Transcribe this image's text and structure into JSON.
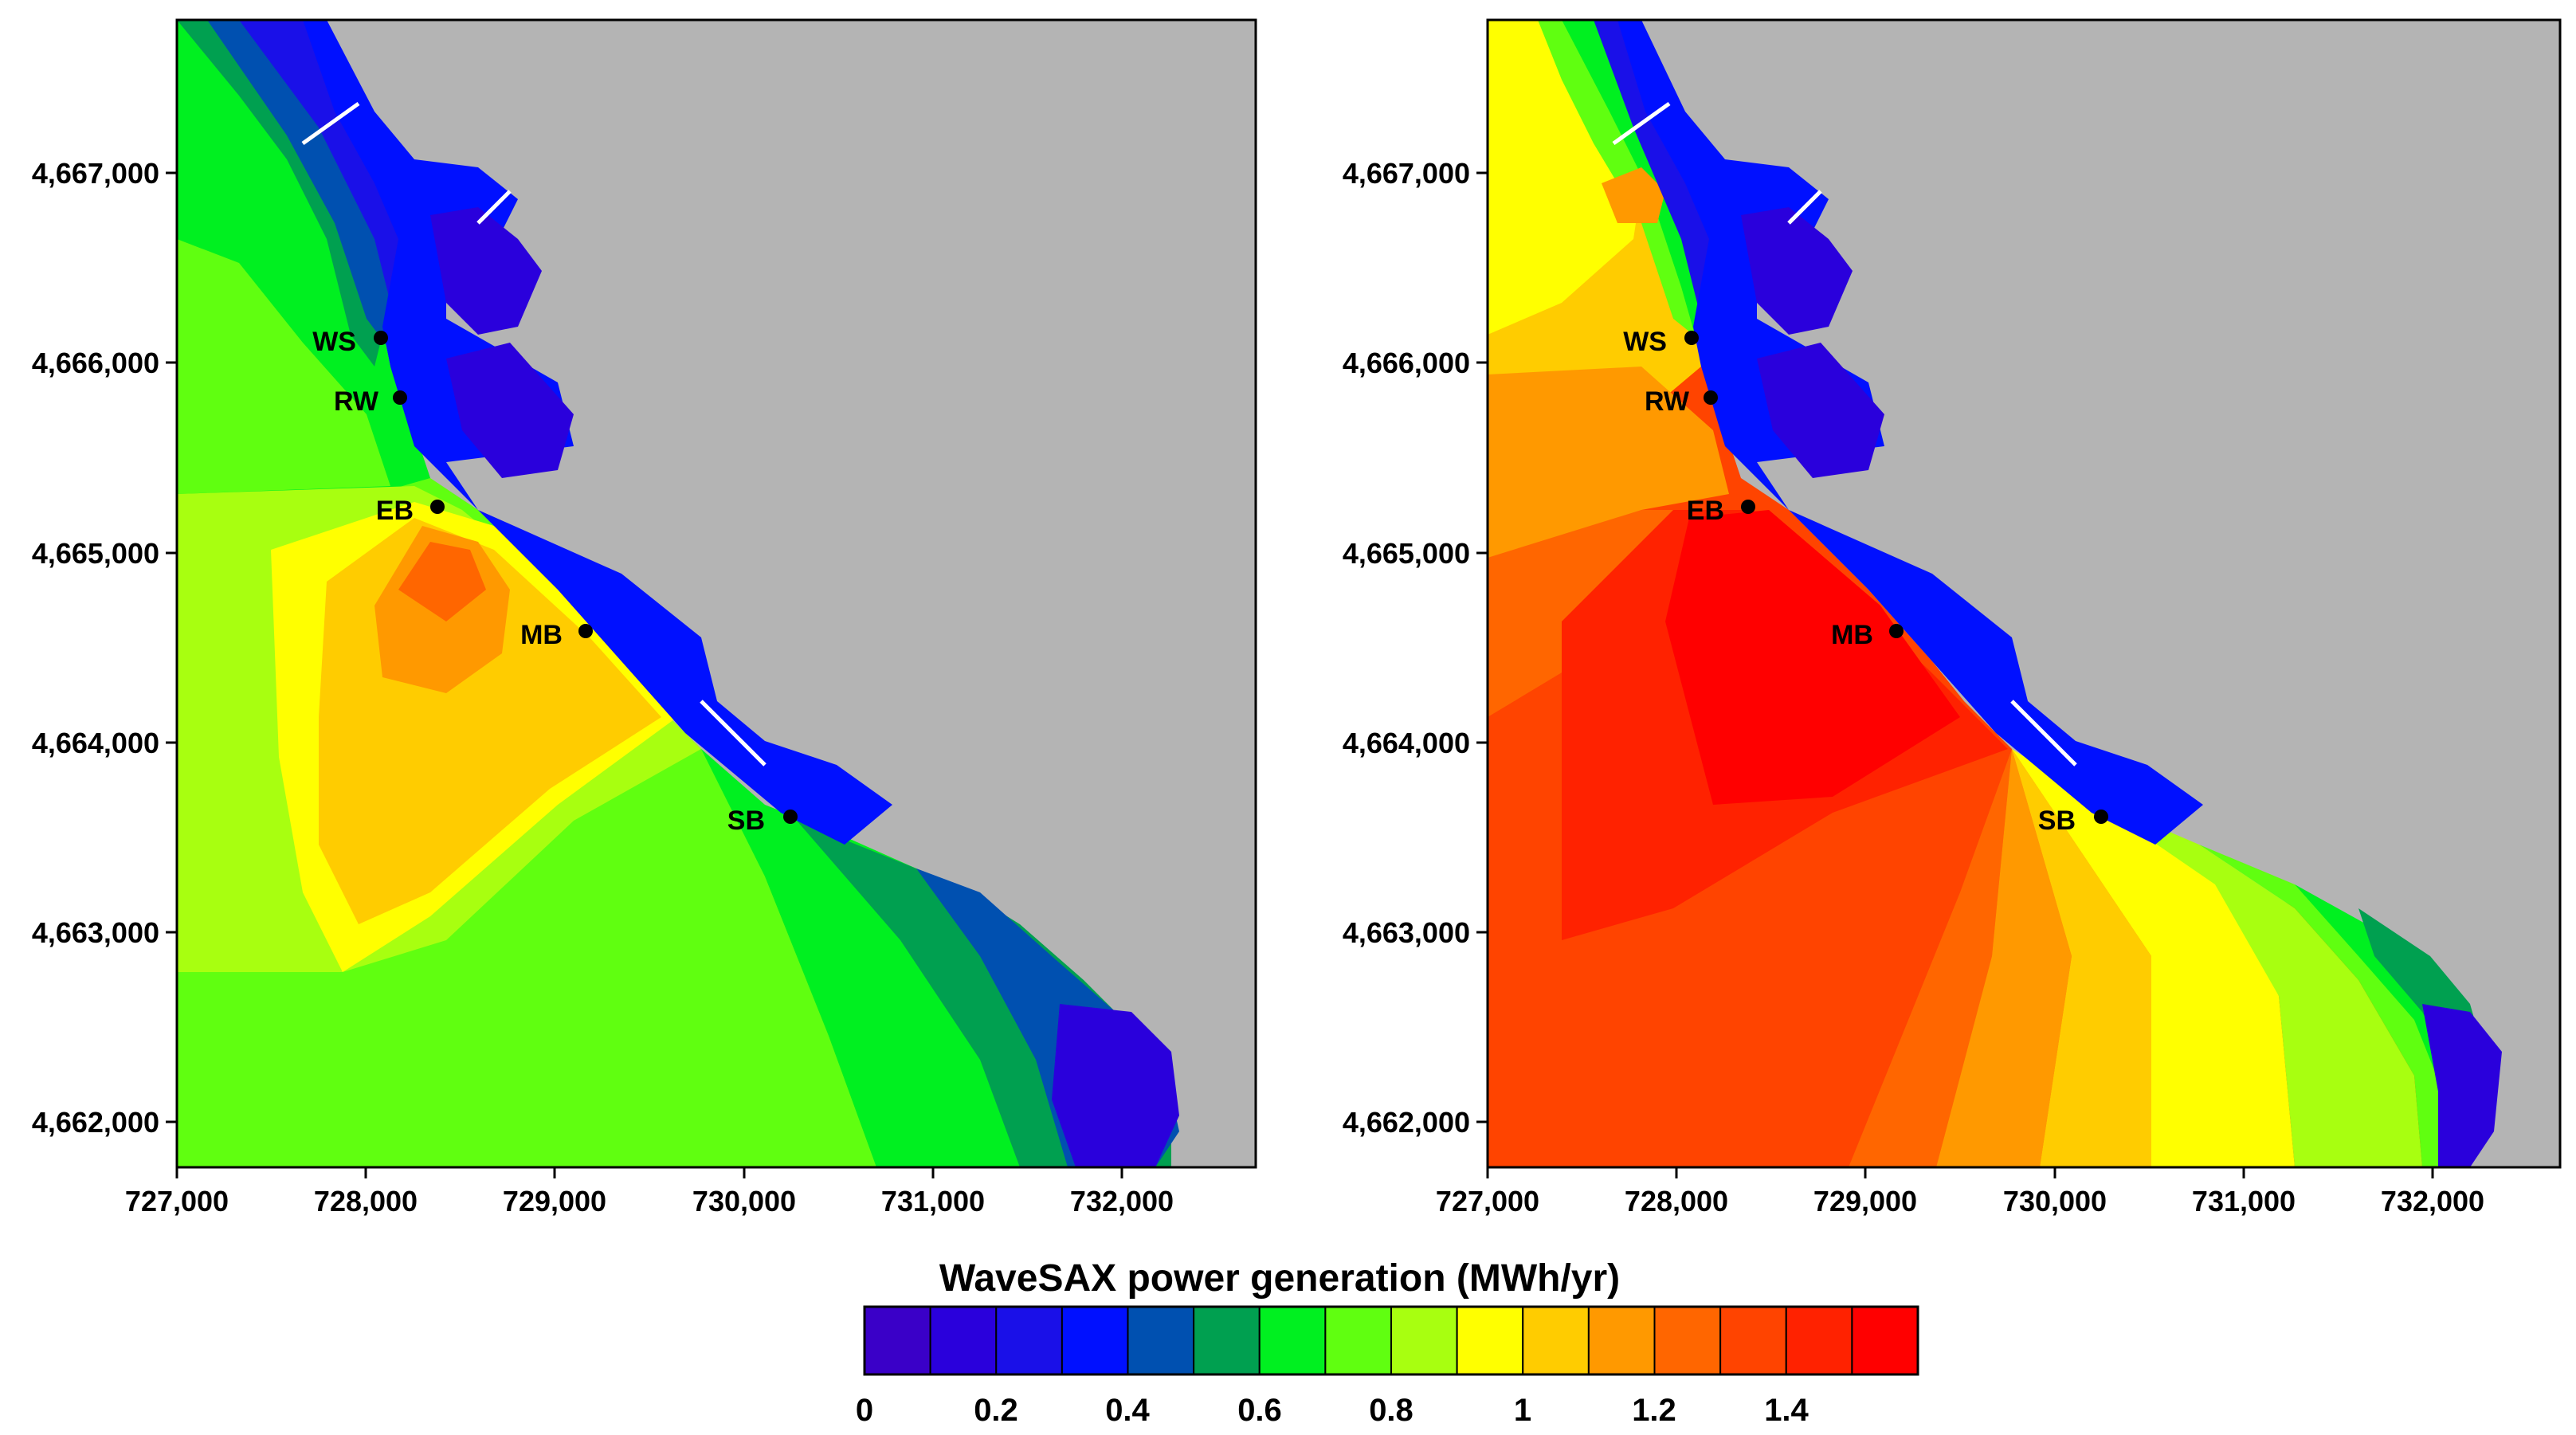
{
  "left_map": {
    "y_ticks": [
      "4,667,000",
      "4,666,000",
      "4,665,000",
      "4,664,000",
      "4,663,000",
      "4,662,000"
    ],
    "x_ticks": [
      "727,000",
      "728,000",
      "729,000",
      "730,000",
      "731,000",
      "732,000"
    ],
    "stations": [
      "WS",
      "RW",
      "EB",
      "MB",
      "SB"
    ]
  },
  "right_map": {
    "y_ticks": [
      "4,667,000",
      "4,666,000",
      "4,665,000",
      "4,664,000",
      "4,663,000",
      "4,662,000"
    ],
    "x_ticks": [
      "727,000",
      "728,000",
      "729,000",
      "730,000",
      "731,000",
      "732,000"
    ],
    "stations": [
      "WS",
      "RW",
      "EB",
      "MB",
      "SB"
    ]
  },
  "colorbar": {
    "title": "WaveSAX power generation (MWh/yr)",
    "tick_labels": [
      "0",
      "0.2",
      "0.4",
      "0.6",
      "0.8",
      "1",
      "1.2",
      "1.4"
    ],
    "colors": [
      "#3a00c8",
      "#2a00dc",
      "#1a10e8",
      "#0010ff",
      "#0050b0",
      "#00a050",
      "#00f020",
      "#60ff10",
      "#a8ff10",
      "#ffff00",
      "#ffcc00",
      "#ff9900",
      "#ff6600",
      "#ff4400",
      "#ff2200",
      "#ff0000"
    ]
  }
}
